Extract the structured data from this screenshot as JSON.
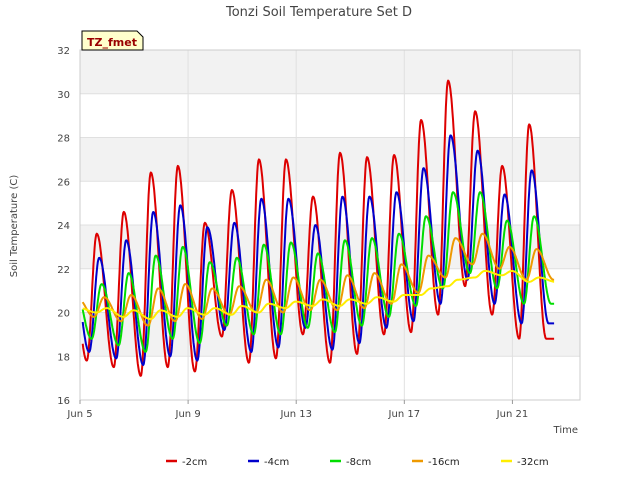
{
  "chart_data": {
    "type": "line",
    "title": "Tonzi Soil Temperature Set D",
    "xlabel": "Time",
    "ylabel": "Soil Temperature (C)",
    "badge": "TZ_fmet",
    "ylim": [
      16,
      32
    ],
    "xlim": [
      0,
      18.5
    ],
    "y_ticks": [
      16,
      18,
      20,
      22,
      24,
      26,
      28,
      30,
      32
    ],
    "x_ticks": [
      {
        "value": 0,
        "label": "Jun 5"
      },
      {
        "value": 4,
        "label": "Jun 9"
      },
      {
        "value": 8,
        "label": "Jun 13"
      },
      {
        "value": 12,
        "label": "Jun 17"
      },
      {
        "value": 16,
        "label": "Jun 21"
      }
    ],
    "grid": true,
    "legend_position": "bottom",
    "series": [
      {
        "name": "-2cm",
        "color": "#dd0000",
        "min": [
          17.8,
          17.5,
          17.1,
          17.5,
          17.3,
          18.9,
          17.7,
          17.9,
          19.0,
          17.7,
          18.1,
          19.0,
          19.1,
          19.9,
          21.2,
          19.9,
          18.8
        ],
        "max": [
          23.6,
          24.6,
          26.4,
          26.7,
          24.1,
          25.6,
          27.0,
          27.0,
          25.3,
          27.3,
          27.1,
          27.2,
          28.8,
          30.6,
          29.2,
          26.7,
          28.6
        ]
      },
      {
        "name": "-4cm",
        "color": "#0000cc",
        "min": [
          18.2,
          17.9,
          17.6,
          18.0,
          17.8,
          19.2,
          18.2,
          18.4,
          19.3,
          18.3,
          18.6,
          19.3,
          19.6,
          20.4,
          21.5,
          20.4,
          19.5
        ],
        "max": [
          22.5,
          23.3,
          24.6,
          24.9,
          23.9,
          24.1,
          25.2,
          25.2,
          24.0,
          25.3,
          25.3,
          25.5,
          26.6,
          28.1,
          27.4,
          25.4,
          26.5
        ]
      },
      {
        "name": "-8cm",
        "color": "#00dd00",
        "min": [
          18.8,
          18.5,
          18.2,
          18.8,
          18.6,
          19.4,
          19.0,
          19.0,
          19.3,
          19.1,
          19.4,
          19.8,
          20.3,
          21.1,
          21.8,
          21.1,
          20.4
        ],
        "max": [
          21.3,
          21.8,
          22.6,
          23.0,
          22.3,
          22.5,
          23.1,
          23.2,
          22.7,
          23.3,
          23.4,
          23.6,
          24.4,
          25.5,
          25.5,
          24.2,
          24.4
        ]
      },
      {
        "name": "-16cm",
        "color": "#ee9900",
        "min": [
          19.8,
          19.6,
          19.4,
          19.6,
          19.7,
          19.9,
          20.0,
          20.0,
          20.1,
          20.1,
          20.2,
          20.4,
          20.9,
          21.6,
          22.2,
          22.0,
          21.5
        ],
        "max": [
          20.7,
          20.8,
          21.1,
          21.3,
          21.1,
          21.2,
          21.5,
          21.6,
          21.5,
          21.7,
          21.8,
          22.2,
          22.6,
          23.4,
          23.6,
          23.0,
          22.9
        ]
      },
      {
        "name": "-32cm",
        "color": "#ffee00",
        "min": [
          20.0,
          19.8,
          19.7,
          19.8,
          19.9,
          19.9,
          20.0,
          20.2,
          20.3,
          20.3,
          20.4,
          20.5,
          20.8,
          21.2,
          21.6,
          21.7,
          21.4
        ],
        "max": [
          20.2,
          20.1,
          20.1,
          20.2,
          20.2,
          20.3,
          20.4,
          20.5,
          20.6,
          20.6,
          20.7,
          20.8,
          21.1,
          21.5,
          21.9,
          21.9,
          21.6
        ]
      }
    ]
  }
}
